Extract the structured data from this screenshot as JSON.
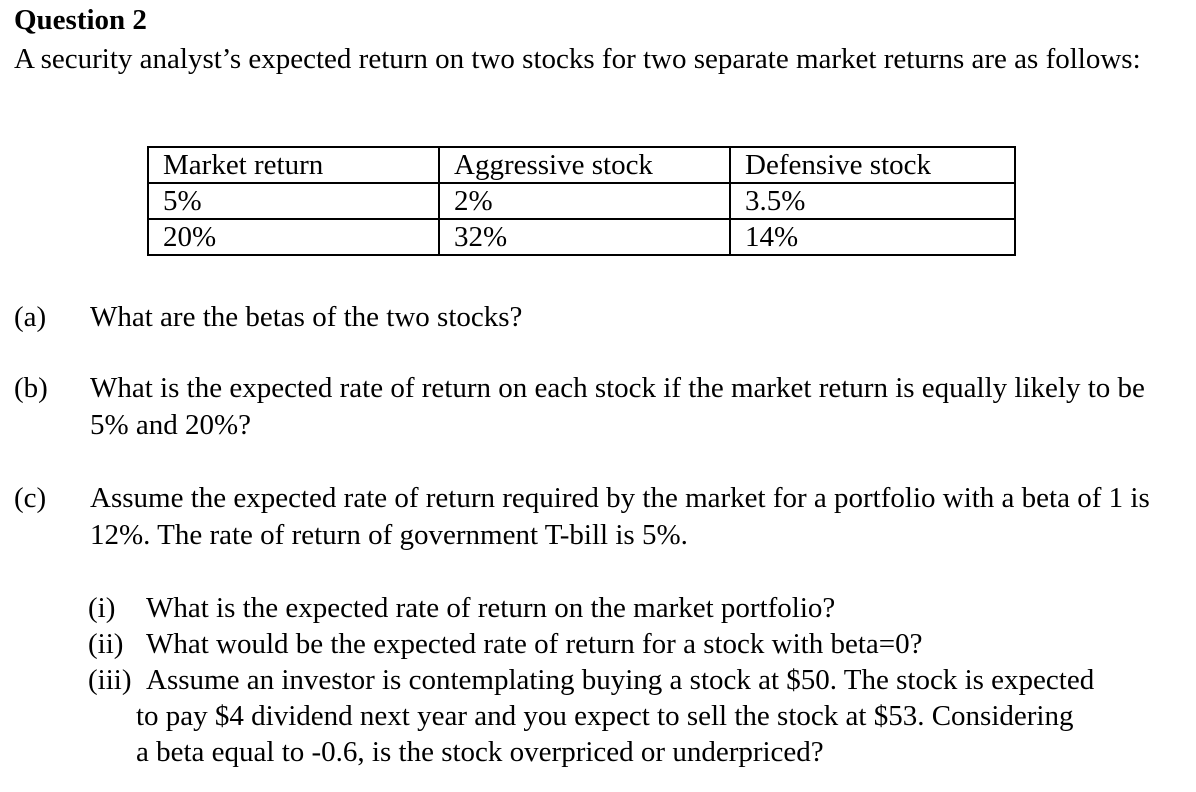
{
  "title": "Question 2",
  "intro": "A security analyst’s expected return on two stocks for two separate market returns are as follows:",
  "table": {
    "headers": [
      "Market return",
      "Aggressive stock",
      "Defensive stock"
    ],
    "rows": [
      [
        "5%",
        "2%",
        "3.5%"
      ],
      [
        "20%",
        "32%",
        "14%"
      ]
    ]
  },
  "questions": {
    "a": {
      "label": "(a)",
      "text": "What are the betas of the two stocks?"
    },
    "b": {
      "label": "(b)",
      "text": "What is the expected rate of return on each stock if the market return is equally likely to be 5% and 20%?"
    },
    "c": {
      "label": "(c)",
      "text": "Assume the expected rate of return required by the market for a portfolio with a beta of 1 is 12%. The rate of return of government T-bill is 5%."
    }
  },
  "subquestions": {
    "i": {
      "label": "(i)",
      "text": "What is the expected rate of return on the market portfolio?"
    },
    "ii": {
      "label": "(ii)",
      "text": "What would be the expected rate of return for a stock with beta=0?"
    },
    "iii": {
      "label": "(iii)",
      "line1": "Assume an investor is contemplating buying a stock at $50. The stock is expected",
      "line2": "to pay $4 dividend next year and you expect to sell the stock at $53. Considering",
      "line3": "a beta equal to -0.6, is the stock overpriced or underpriced?"
    }
  }
}
